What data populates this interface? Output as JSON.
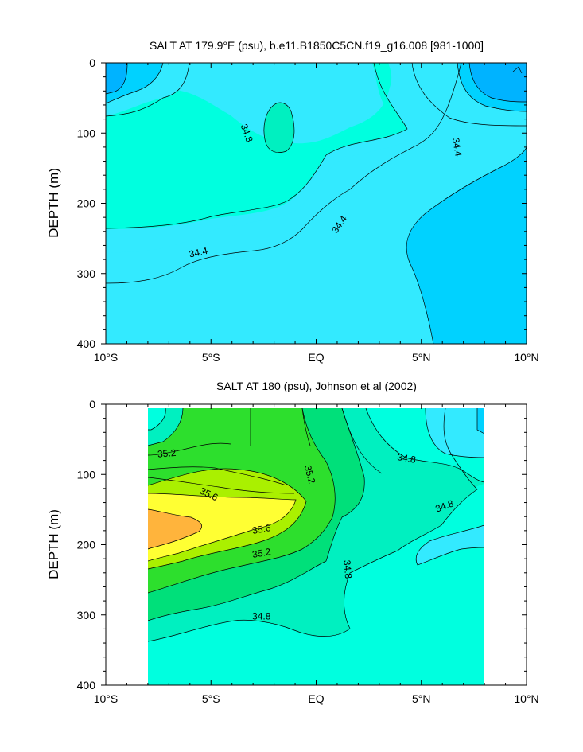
{
  "chart_data": [
    {
      "type": "heatmap",
      "subtype": "filled-contour",
      "title": "SALT AT 179.9°E (psu), b.e11.B1850C5CN.f19_g16.008 [981-1000]",
      "xlabel": "",
      "ylabel": "DEPTH (m)",
      "xlim": [
        -10,
        10
      ],
      "ylim": [
        400,
        0
      ],
      "x_ticks": [
        -10,
        -5,
        0,
        5,
        10
      ],
      "x_tick_labels": [
        "10°S",
        "5°S",
        "EQ",
        "5°N",
        "10°N"
      ],
      "y_ticks": [
        0,
        100,
        200,
        300,
        400
      ],
      "y_tick_labels": [
        "0",
        "100",
        "200",
        "300",
        "400"
      ],
      "contour_labels": [
        {
          "text": "34.8",
          "x": -3.3,
          "y": 100,
          "angle": 70
        },
        {
          "text": "34.4",
          "x": 6.7,
          "y": 120,
          "angle": 80
        },
        {
          "text": "34.4",
          "x": 1.1,
          "y": 230,
          "angle": -55
        },
        {
          "text": "34.4",
          "x": -5.6,
          "y": 270,
          "angle": -12
        }
      ]
    },
    {
      "type": "heatmap",
      "subtype": "filled-contour",
      "title": "SALT AT 180 (psu), Johnson et al (2002)",
      "xlabel": "",
      "ylabel": "DEPTH (m)",
      "xlim": [
        -10,
        10
      ],
      "ylim": [
        400,
        0
      ],
      "data_xrange": [
        -8,
        8
      ],
      "x_ticks": [
        -10,
        -5,
        0,
        5,
        10
      ],
      "x_tick_labels": [
        "10°S",
        "5°S",
        "EQ",
        "5°N",
        "10°N"
      ],
      "y_ticks": [
        0,
        100,
        200,
        300,
        400
      ],
      "y_tick_labels": [
        "0",
        "100",
        "200",
        "300",
        "400"
      ],
      "contour_labels": [
        {
          "text": "35.2",
          "x": -7.1,
          "y": 70,
          "angle": -5
        },
        {
          "text": "35.6",
          "x": -5.1,
          "y": 128,
          "angle": 25
        },
        {
          "text": "35.2",
          "x": -0.3,
          "y": 100,
          "angle": 75
        },
        {
          "text": "35.6",
          "x": -2.6,
          "y": 178,
          "angle": -10
        },
        {
          "text": "35.2",
          "x": -2.6,
          "y": 212,
          "angle": -10
        },
        {
          "text": "34.8",
          "x": 1.5,
          "y": 235,
          "angle": 85
        },
        {
          "text": "34.8",
          "x": -2.6,
          "y": 302,
          "angle": 0
        },
        {
          "text": "34.8",
          "x": 4.3,
          "y": 77,
          "angle": 10
        },
        {
          "text": "34.8",
          "x": 6.1,
          "y": 145,
          "angle": -20
        }
      ]
    }
  ],
  "colors": {
    "level_34_0": "#00b3ff",
    "level_34_2": "#00d2ff",
    "level_34_4": "#33eaff",
    "level_34_6": "#00ffdf",
    "level_34_8": "#00f0c0",
    "level_35_0": "#00e07a",
    "level_35_2": "#2ddf2d",
    "level_35_4": "#aaf000",
    "level_35_6": "#ffff33",
    "level_35_8": "#ffb43c"
  }
}
